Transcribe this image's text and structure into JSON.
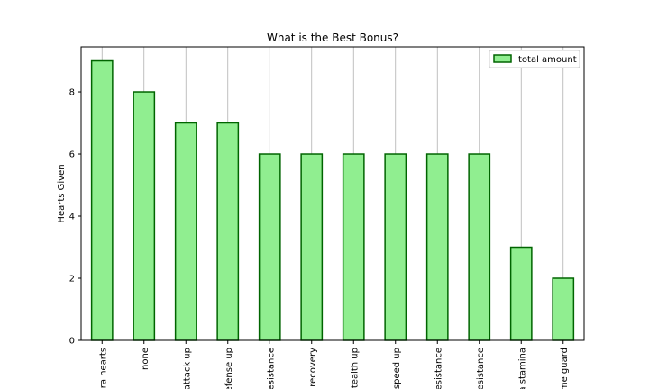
{
  "chart_data": {
    "type": "bar",
    "title": "What is the Best Bonus?",
    "xlabel": "",
    "ylabel": "Hearts Given",
    "categories": [
      "ra hearts",
      "none",
      "attack up",
      "efense up",
      "esistance",
      "recovery",
      "tealth up",
      "speed up",
      "esistance",
      "esistance",
      "a stamina",
      "me guard"
    ],
    "series": [
      {
        "name": "total amount",
        "values": [
          9,
          8,
          7,
          7,
          6,
          6,
          6,
          6,
          6,
          6,
          3,
          2
        ]
      }
    ],
    "ylim": [
      0,
      9.45
    ],
    "yticks": [
      0,
      2,
      4,
      6,
      8
    ],
    "grid": "vertical",
    "legend_position": "top-right",
    "colors": {
      "bar_fill": "#90ee90",
      "bar_edge": "#006400",
      "grid": "#b0b0b0"
    }
  }
}
